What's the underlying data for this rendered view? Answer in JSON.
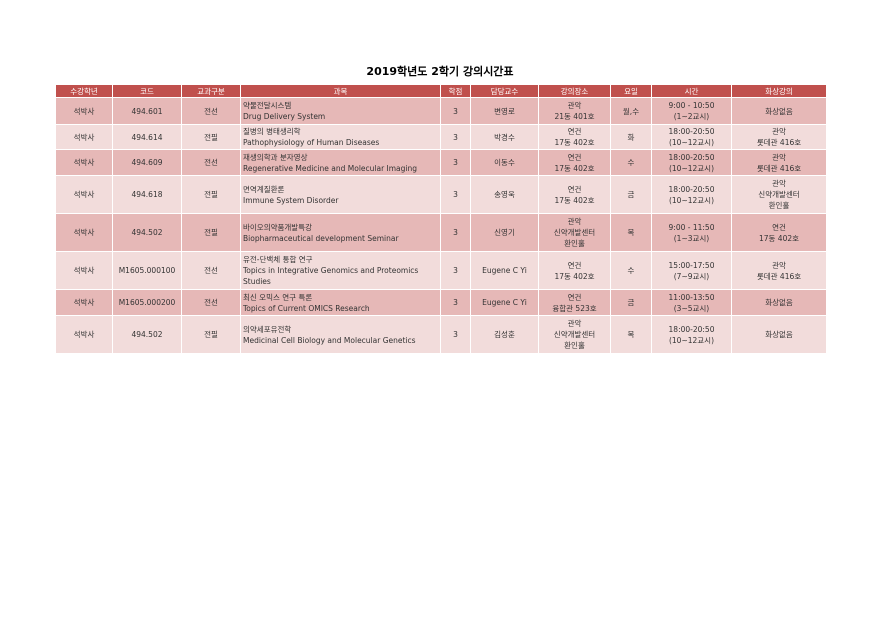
{
  "title": "2019학년도 2학기 강의시간표",
  "colors": {
    "header": "#c0504d",
    "row_dark": "#e6b8b7",
    "row_light": "#f2dcdb"
  },
  "headers": [
    "수강학년",
    "코드",
    "교과구분",
    "과목",
    "학점",
    "담당교수",
    "강의장소",
    "요일",
    "시간",
    "화상강의"
  ],
  "rows": [
    {
      "level": "석박사",
      "code": "494.601",
      "type": "전선",
      "subject_ko": "약물전달시스템",
      "subject_en": "Drug Delivery System",
      "credit": "3",
      "professor": "변영로",
      "place": "관악\n21동 401호",
      "day": "월,수",
      "time": "9:00 - 10:50\n(1~2교시)",
      "video": "화상없음"
    },
    {
      "level": "석박사",
      "code": "494.614",
      "type": "전필",
      "subject_ko": "질병의 병태생리학",
      "subject_en": "Pathophysiology of Human Diseases",
      "credit": "3",
      "professor": "박경수",
      "place": "연건\n17동 402호",
      "day": "화",
      "time": "18:00-20:50\n(10~12교시)",
      "video": "관악\n롯데관 416호"
    },
    {
      "level": "석박사",
      "code": "494.609",
      "type": "전선",
      "subject_ko": "재생의학과 분자영상",
      "subject_en": "Regenerative Medicine and Molecular Imaging",
      "credit": "3",
      "professor": "이동수",
      "place": "연건\n17동 402호",
      "day": "수",
      "time": "18:00-20:50\n(10~12교시)",
      "video": "관악\n롯데관 416호"
    },
    {
      "level": "석박사",
      "code": "494.618",
      "type": "전필",
      "subject_ko": "면역계질환론",
      "subject_en": " Immune System Disorder",
      "credit": "3",
      "professor": "송영욱",
      "place": "연건\n17동 402호",
      "day": "금",
      "time": "18:00-20:50\n(10~12교시)",
      "video": "관악\n신약개발센터\n환인홀"
    },
    {
      "level": "석박사",
      "code": "494.502",
      "type": "전필",
      "subject_ko": "바이오의약품개발특강",
      "subject_en": "Biopharmaceutical development Seminar",
      "credit": "3",
      "professor": "신영기",
      "place": "관악\n신약개발센터\n환인홀",
      "day": "목",
      "time": "9:00 - 11:50\n(1~3교시)",
      "video": "연건\n17동 402호"
    },
    {
      "level": "석박사",
      "code": "M1605.000100",
      "type": "전선",
      "subject_ko": "유전-단백체 통합 연구",
      "subject_en": " Topics in Integrative Genomics and Proteomics Studies",
      "credit": "3",
      "professor": "Eugene C Yi",
      "place": "연건\n17동 402호",
      "day": "수",
      "time": "15:00-17:50\n(7~9교시)",
      "video": "관악\n롯데관 416호"
    },
    {
      "level": "석박사",
      "code": "M1605.000200",
      "type": "전선",
      "subject_ko": "최신 오믹스 연구 특론",
      "subject_en": "Topics of Current OMICS Research",
      "credit": "3",
      "professor": "Eugene C Yi",
      "place": "연건\n융합관 523호",
      "day": "금",
      "time": "11:00-13:50\n(3~5교시)",
      "video": "화상없음"
    },
    {
      "level": "석박사",
      "code": "494.502",
      "type": "전필",
      "subject_ko": "의약세포유전학",
      "subject_en": "Medicinal Cell Biology and Molecular Genetics",
      "credit": "3",
      "professor": "김성훈",
      "place": "관악\n신약개발센터\n환인홀",
      "day": "목",
      "time": "18:00-20:50\n(10~12교시)",
      "video": "화상없음"
    }
  ]
}
